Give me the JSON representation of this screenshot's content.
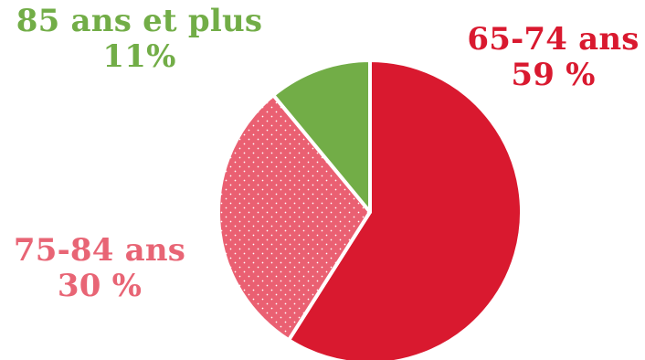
{
  "chart_data": {
    "type": "pie",
    "categories": [
      "65-74 ans",
      "75-84 ans",
      "85 ans et plus"
    ],
    "values": [
      59,
      30,
      11
    ],
    "display_values": [
      "59 %",
      "30 %",
      "11%"
    ],
    "colors": [
      "#d9192f",
      "#ea6072",
      "#72ad47"
    ],
    "patterns": [
      "solid",
      "white-dots",
      "solid"
    ],
    "legend": "none"
  }
}
